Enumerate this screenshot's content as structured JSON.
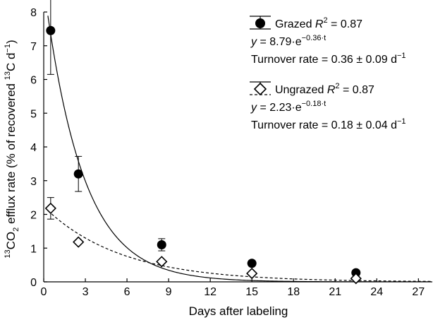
{
  "chart_data": {
    "type": "scatter",
    "xlabel": "Days after labeling",
    "ylabel": {
      "pre_sup": "13",
      "main1": "CO",
      "sub": "2",
      "main2": " efflux rate (% of recovered ",
      "sup2": "13",
      "main3": "C d",
      "sup3": "−1",
      "main4": ")"
    },
    "xlim": [
      0,
      28
    ],
    "ylim": [
      0,
      8
    ],
    "xticks": [
      0,
      3,
      6,
      9,
      12,
      15,
      18,
      21,
      24,
      27
    ],
    "yticks": [
      0,
      1,
      2,
      3,
      4,
      5,
      6,
      7,
      8
    ],
    "grid": false,
    "legend_position": "top-right",
    "series": [
      {
        "name": "Grazed",
        "marker": "filled-circle",
        "line_style": "solid",
        "color": "#000000",
        "x": [
          0.5,
          2.5,
          8.5,
          15,
          22.5
        ],
        "y": [
          7.45,
          3.2,
          1.1,
          0.55,
          0.27
        ],
        "err": [
          1.3,
          0.52,
          0.18,
          0.0,
          0.0
        ],
        "fit": {
          "a": 8.79,
          "k": 0.36
        },
        "legend": {
          "name": "Grazed",
          "r2_label": "R",
          "r2_sup": "2",
          "r2_value": " = 0.87",
          "eq_var": "y",
          "eq_body": " = 8.79·e",
          "eq_exp": "−0.36·t",
          "turnover": "Turnover rate = 0.36 ± 0.09 d",
          "turnover_sup": "−1"
        }
      },
      {
        "name": "Ungrazed",
        "marker": "open-diamond",
        "line_style": "dashed",
        "color": "#000000",
        "x": [
          0.5,
          2.5,
          8.5,
          15,
          22.5
        ],
        "y": [
          2.18,
          1.18,
          0.6,
          0.25,
          0.1
        ],
        "err": [
          0.32,
          0.0,
          0.0,
          0.0,
          0.0
        ],
        "fit": {
          "a": 2.23,
          "k": 0.18
        },
        "legend": {
          "name": "Ungrazed",
          "r2_label": "R",
          "r2_sup": "2",
          "r2_value": " = 0.87",
          "eq_var": "y",
          "eq_body": " = 2.23·e",
          "eq_exp": "−0.18·t",
          "turnover": "Turnover rate = 0.18 ± 0.04 d",
          "turnover_sup": "−1"
        }
      }
    ]
  }
}
